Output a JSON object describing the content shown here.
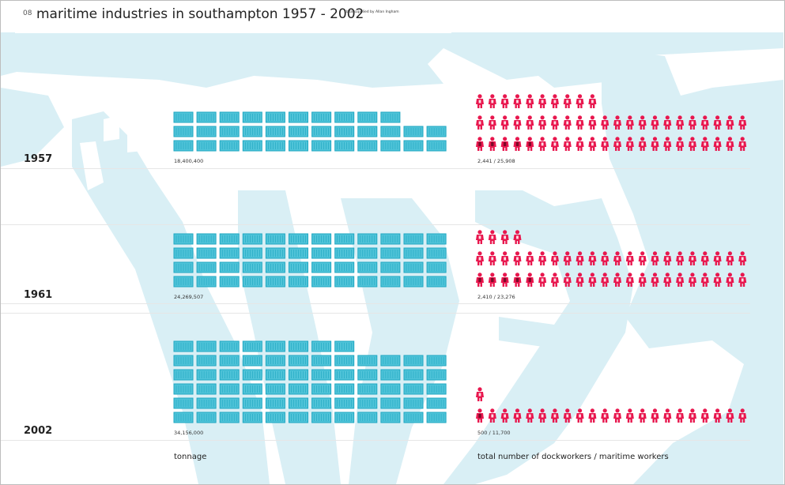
{
  "header": {
    "page_number": "08",
    "title": "maritime industries in southampton 1957 - 2002",
    "credit": "data supplied by Allan Ingham"
  },
  "chart_data": {
    "type": "pictogram",
    "title": "maritime industries in southampton 1957 - 2002",
    "xlabel_left": "tonnage",
    "xlabel_right": "total number of dockworkers / maritime workers",
    "rows": [
      {
        "year": "1957",
        "tonnage": 18400400,
        "tonnage_label": "18,400,400",
        "container_icons": 34,
        "dockworkers": 2441,
        "maritime_workers": 25908,
        "workers_label": "2,441 / 25,908",
        "worker_icons": 54
      },
      {
        "year": "1961",
        "tonnage": 24269507,
        "tonnage_label": "24,269,507",
        "container_icons": 48,
        "dockworkers": 2410,
        "maritime_workers": 23276,
        "workers_label": "2,410 / 23,276",
        "worker_icons": 48
      },
      {
        "year": "2002",
        "tonnage": 34156000,
        "tonnage_label": "34,156,000",
        "container_icons": 68,
        "dockworkers": 500,
        "maritime_workers": 11700,
        "workers_label": "500 / 11,700",
        "worker_icons": 23
      }
    ],
    "colors": {
      "container": "#4fc3d8",
      "container_stripe": "#1ea7c2",
      "worker": "#e8174e",
      "worker_dock": "#7a0a28",
      "water": "#d9eff5"
    }
  }
}
